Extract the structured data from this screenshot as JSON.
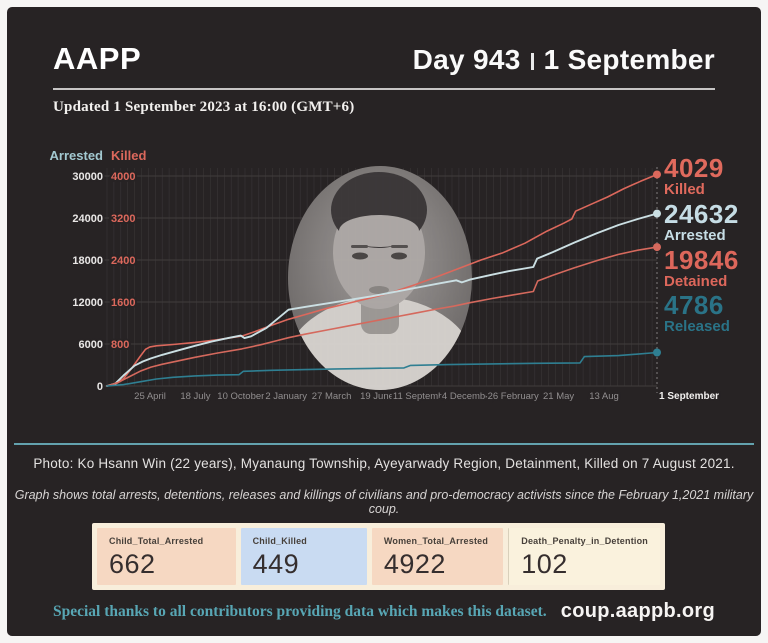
{
  "header": {
    "brand": "AAPP",
    "day_label": "Day 943",
    "date_label": "1 September"
  },
  "updated_line": "Updated 1 September 2023 at 16:00 (GMT+6)",
  "chart_data": {
    "type": "line",
    "title": "",
    "x_tick_labels": [
      "25 April",
      "18 July",
      "10 October",
      "2 January",
      "27 March",
      "19 June",
      "11 September",
      "4 December",
      "26 February",
      "21 May",
      "13 Aug"
    ],
    "x_end_label": "1 September",
    "left_axis": {
      "label": "Arrested",
      "max": 30000,
      "ticks": [
        0,
        6000,
        12000,
        18000,
        24000,
        30000
      ],
      "color": "#a3c9d1",
      "tick_color": "#e9e7e6"
    },
    "right_axis": {
      "label": "Killed",
      "max": 4000,
      "ticks": [
        800,
        1600,
        2400,
        3200,
        4000
      ],
      "color": "#dc685c",
      "tick_color": "#dc685c"
    },
    "grid": true,
    "legend_position": "right",
    "series": [
      {
        "name": "Killed",
        "axis": "right",
        "color": "#dc685c",
        "final_value": 4029,
        "points": [
          [
            0,
            0
          ],
          [
            0.015,
            30
          ],
          [
            0.03,
            140
          ],
          [
            0.045,
            340
          ],
          [
            0.06,
            560
          ],
          [
            0.07,
            700
          ],
          [
            0.078,
            745
          ],
          [
            0.09,
            765
          ],
          [
            0.12,
            790
          ],
          [
            0.16,
            830
          ],
          [
            0.2,
            880
          ],
          [
            0.245,
            950
          ],
          [
            0.27,
            1040
          ],
          [
            0.3,
            1160
          ],
          [
            0.33,
            1270
          ],
          [
            0.36,
            1360
          ],
          [
            0.4,
            1480
          ],
          [
            0.44,
            1580
          ],
          [
            0.48,
            1680
          ],
          [
            0.52,
            1790
          ],
          [
            0.56,
            1930
          ],
          [
            0.6,
            2080
          ],
          [
            0.64,
            2240
          ],
          [
            0.68,
            2400
          ],
          [
            0.72,
            2540
          ],
          [
            0.76,
            2720
          ],
          [
            0.8,
            2950
          ],
          [
            0.83,
            3100
          ],
          [
            0.845,
            3180
          ],
          [
            0.852,
            3330
          ],
          [
            0.88,
            3460
          ],
          [
            0.91,
            3600
          ],
          [
            0.94,
            3760
          ],
          [
            0.97,
            3900
          ],
          [
            1,
            4029
          ]
        ]
      },
      {
        "name": "Arrested",
        "axis": "left",
        "color": "#cbdfe3",
        "final_value": 24632,
        "points": [
          [
            0,
            0
          ],
          [
            0.015,
            350
          ],
          [
            0.03,
            1500
          ],
          [
            0.05,
            2900
          ],
          [
            0.065,
            3500
          ],
          [
            0.08,
            3950
          ],
          [
            0.1,
            4450
          ],
          [
            0.13,
            5100
          ],
          [
            0.16,
            5750
          ],
          [
            0.19,
            6350
          ],
          [
            0.22,
            6850
          ],
          [
            0.243,
            7200
          ],
          [
            0.25,
            6850
          ],
          [
            0.262,
            7100
          ],
          [
            0.29,
            8300
          ],
          [
            0.31,
            9600
          ],
          [
            0.33,
            10900
          ],
          [
            0.36,
            11300
          ],
          [
            0.4,
            11800
          ],
          [
            0.44,
            12300
          ],
          [
            0.48,
            12800
          ],
          [
            0.52,
            13400
          ],
          [
            0.56,
            14000
          ],
          [
            0.6,
            14600
          ],
          [
            0.635,
            15100
          ],
          [
            0.645,
            14800
          ],
          [
            0.66,
            15200
          ],
          [
            0.7,
            15900
          ],
          [
            0.73,
            16400
          ],
          [
            0.775,
            17000
          ],
          [
            0.782,
            18200
          ],
          [
            0.81,
            19100
          ],
          [
            0.85,
            20500
          ],
          [
            0.89,
            21800
          ],
          [
            0.93,
            23000
          ],
          [
            0.965,
            23850
          ],
          [
            1,
            24632
          ]
        ]
      },
      {
        "name": "Detained",
        "axis": "left",
        "color": "#d5695d",
        "final_value": 19846,
        "points": [
          [
            0,
            0
          ],
          [
            0.02,
            500
          ],
          [
            0.04,
            1300
          ],
          [
            0.06,
            2100
          ],
          [
            0.08,
            2700
          ],
          [
            0.1,
            3100
          ],
          [
            0.13,
            3600
          ],
          [
            0.16,
            4100
          ],
          [
            0.2,
            4700
          ],
          [
            0.245,
            5300
          ],
          [
            0.28,
            5900
          ],
          [
            0.31,
            6500
          ],
          [
            0.33,
            6900
          ],
          [
            0.36,
            7400
          ],
          [
            0.4,
            8000
          ],
          [
            0.44,
            8600
          ],
          [
            0.48,
            9200
          ],
          [
            0.52,
            9800
          ],
          [
            0.56,
            10400
          ],
          [
            0.6,
            11000
          ],
          [
            0.63,
            11400
          ],
          [
            0.66,
            11900
          ],
          [
            0.7,
            12500
          ],
          [
            0.73,
            12900
          ],
          [
            0.775,
            13500
          ],
          [
            0.783,
            15000
          ],
          [
            0.81,
            15800
          ],
          [
            0.85,
            16900
          ],
          [
            0.89,
            17900
          ],
          [
            0.93,
            18800
          ],
          [
            0.965,
            19400
          ],
          [
            1,
            19846
          ]
        ]
      },
      {
        "name": "Released",
        "axis": "left",
        "color": "#2f7f92",
        "final_value": 4786,
        "points": [
          [
            0,
            0
          ],
          [
            0.03,
            200
          ],
          [
            0.06,
            600
          ],
          [
            0.09,
            1000
          ],
          [
            0.12,
            1250
          ],
          [
            0.16,
            1450
          ],
          [
            0.2,
            1550
          ],
          [
            0.24,
            1620
          ],
          [
            0.248,
            2100
          ],
          [
            0.3,
            2250
          ],
          [
            0.36,
            2350
          ],
          [
            0.42,
            2450
          ],
          [
            0.48,
            2520
          ],
          [
            0.54,
            2580
          ],
          [
            0.552,
            2950
          ],
          [
            0.62,
            3050
          ],
          [
            0.7,
            3150
          ],
          [
            0.78,
            3250
          ],
          [
            0.86,
            3300
          ],
          [
            0.868,
            4200
          ],
          [
            0.93,
            4350
          ],
          [
            1,
            4786
          ]
        ]
      }
    ]
  },
  "callouts": [
    {
      "value": "4029",
      "label": "Killed"
    },
    {
      "value": "24632",
      "label": "Arrested"
    },
    {
      "value": "19846",
      "label": "Detained"
    },
    {
      "value": "4786",
      "label": "Released"
    }
  ],
  "captions": {
    "photo": "Photo: Ko Hsann Win (22 years), Myanaung Township, Ayeyarwady Region, Detainment, Killed on 7 August 2021.",
    "graph_note": "Graph shows total arrests, detentions, releases and killings of civilians and pro-democracy activists since the February 1,2021 military coup."
  },
  "stat_boxes": [
    {
      "label": "Child_Total_Arrested",
      "value": "662",
      "bg": "#f6d8c2"
    },
    {
      "label": "Child_Killed",
      "value": "449",
      "bg": "#c9dbf2"
    },
    {
      "label": "Women_Total_Arrested",
      "value": "4922",
      "bg": "#f6d8c2"
    },
    {
      "label": "Death_Penalty_in_Detention",
      "value": "102",
      "bg": "#faf2dd"
    }
  ],
  "footer": {
    "thanks": "Special thanks to all contributors providing data which makes this dataset.",
    "site": "coup.aappb.org"
  },
  "colors": {
    "card_bg": "#272324",
    "frame": "#f6f5f4",
    "divider_teal": "#63a2ae",
    "salmon": "#dc685c",
    "light_teal": "#cbdfe3",
    "dark_teal": "#2f7f92",
    "grid_line": "#3a3637",
    "x_label_gray": "#918e8f"
  }
}
